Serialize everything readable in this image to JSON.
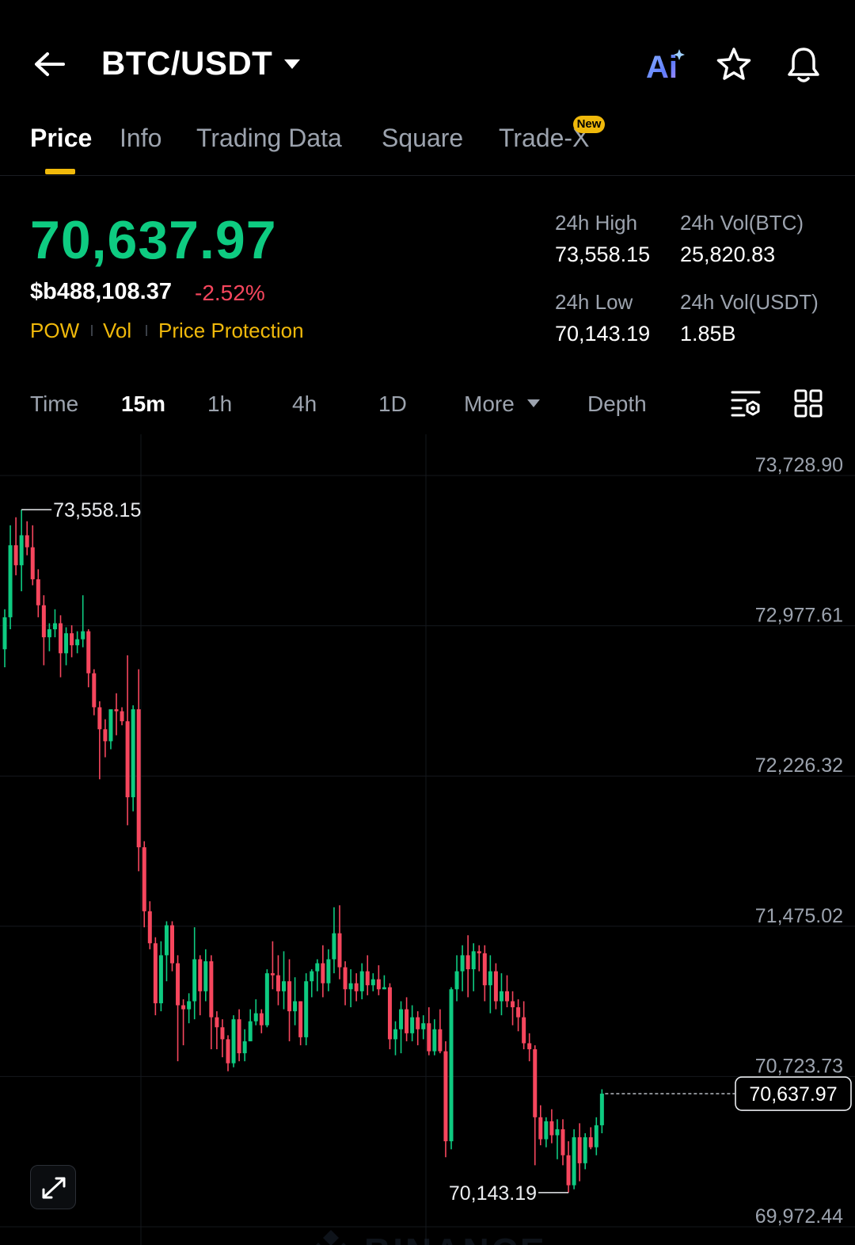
{
  "header": {
    "pair": "BTC/USDT",
    "ai_label": "Ai"
  },
  "tabs": [
    {
      "label": "Price",
      "active": true
    },
    {
      "label": "Info"
    },
    {
      "label": "Trading Data"
    },
    {
      "label": "Square"
    },
    {
      "label": "Trade-X",
      "badge": "New"
    }
  ],
  "price": {
    "last": "70,637.97",
    "fiat": "$b488,108.37",
    "change": "-2.52%",
    "tags": [
      "POW",
      "Vol",
      "Price Protection"
    ]
  },
  "stats": {
    "high_label": "24h High",
    "high_value": "73,558.15",
    "vol_btc_label": "24h Vol(BTC)",
    "vol_btc_value": "25,820.83",
    "low_label": "24h Low",
    "low_value": "70,143.19",
    "vol_usdt_label": "24h Vol(USDT)",
    "vol_usdt_value": "1.85B"
  },
  "intervals": {
    "items": [
      "Time",
      "15m",
      "1h",
      "4h",
      "1D",
      "More",
      "Depth"
    ],
    "active": "15m"
  },
  "colors": {
    "up": "#0ecb81",
    "down": "#f6465d",
    "accent": "#f0b90b",
    "background": "#000000"
  },
  "chart_data": {
    "type": "candlestick",
    "interval": "15m",
    "watermark": "BINANCE",
    "y_ticks": [
      "73,728.90",
      "72,977.61",
      "72,226.32",
      "71,475.02",
      "70,723.73",
      "69,972.44"
    ],
    "ylim": [
      69972.44,
      73728.9
    ],
    "high_marker": "73,558.15",
    "low_marker": "70,143.19",
    "last_price_label": "70,637.97",
    "last_price": 70637.97,
    "candles": [
      {
        "o": 72860,
        "h": 73060,
        "l": 72770,
        "c": 73020
      },
      {
        "o": 73020,
        "h": 73480,
        "l": 72960,
        "c": 73380
      },
      {
        "o": 73380,
        "h": 73520,
        "l": 73230,
        "c": 73280
      },
      {
        "o": 73280,
        "h": 73558.15,
        "l": 73150,
        "c": 73430
      },
      {
        "o": 73430,
        "h": 73500,
        "l": 73330,
        "c": 73370
      },
      {
        "o": 73370,
        "h": 73480,
        "l": 73180,
        "c": 73210
      },
      {
        "o": 73210,
        "h": 73260,
        "l": 73020,
        "c": 73080
      },
      {
        "o": 73080,
        "h": 73130,
        "l": 72780,
        "c": 72920
      },
      {
        "o": 72920,
        "h": 72990,
        "l": 72850,
        "c": 72960
      },
      {
        "o": 72960,
        "h": 73060,
        "l": 72920,
        "c": 72990
      },
      {
        "o": 72990,
        "h": 73030,
        "l": 72720,
        "c": 72840
      },
      {
        "o": 72840,
        "h": 72970,
        "l": 72780,
        "c": 72940
      },
      {
        "o": 72940,
        "h": 72980,
        "l": 72820,
        "c": 72880
      },
      {
        "o": 72880,
        "h": 72950,
        "l": 72840,
        "c": 72910
      },
      {
        "o": 72910,
        "h": 73130,
        "l": 72870,
        "c": 72950
      },
      {
        "o": 72950,
        "h": 72960,
        "l": 72670,
        "c": 72740
      },
      {
        "o": 72740,
        "h": 72760,
        "l": 72530,
        "c": 72570
      },
      {
        "o": 72570,
        "h": 72600,
        "l": 72210,
        "c": 72460
      },
      {
        "o": 72460,
        "h": 72510,
        "l": 72320,
        "c": 72400
      },
      {
        "o": 72400,
        "h": 72530,
        "l": 72360,
        "c": 72560
      },
      {
        "o": 72560,
        "h": 72640,
        "l": 72430,
        "c": 72550
      },
      {
        "o": 72550,
        "h": 72570,
        "l": 72480,
        "c": 72500
      },
      {
        "o": 72500,
        "h": 72830,
        "l": 71980,
        "c": 72120
      },
      {
        "o": 72120,
        "h": 72580,
        "l": 72050,
        "c": 72560
      },
      {
        "o": 72560,
        "h": 72760,
        "l": 71750,
        "c": 71870
      },
      {
        "o": 71870,
        "h": 71900,
        "l": 71470,
        "c": 71550
      },
      {
        "o": 71550,
        "h": 71600,
        "l": 71360,
        "c": 71390
      },
      {
        "o": 71390,
        "h": 71420,
        "l": 71030,
        "c": 71090
      },
      {
        "o": 71090,
        "h": 71400,
        "l": 71050,
        "c": 71330
      },
      {
        "o": 71330,
        "h": 71500,
        "l": 71200,
        "c": 71480
      },
      {
        "o": 71480,
        "h": 71500,
        "l": 71250,
        "c": 71290
      },
      {
        "o": 71290,
        "h": 71330,
        "l": 70800,
        "c": 71080
      },
      {
        "o": 71080,
        "h": 71110,
        "l": 70880,
        "c": 71060
      },
      {
        "o": 71060,
        "h": 71140,
        "l": 70990,
        "c": 71100
      },
      {
        "o": 71100,
        "h": 71470,
        "l": 71010,
        "c": 71310
      },
      {
        "o": 71310,
        "h": 71330,
        "l": 71030,
        "c": 71150
      },
      {
        "o": 71150,
        "h": 71360,
        "l": 71100,
        "c": 71300
      },
      {
        "o": 71300,
        "h": 71330,
        "l": 70860,
        "c": 71020
      },
      {
        "o": 71020,
        "h": 71050,
        "l": 70860,
        "c": 70970
      },
      {
        "o": 70970,
        "h": 71010,
        "l": 70820,
        "c": 70910
      },
      {
        "o": 70910,
        "h": 70930,
        "l": 70750,
        "c": 70790
      },
      {
        "o": 70790,
        "h": 71030,
        "l": 70770,
        "c": 71010
      },
      {
        "o": 71010,
        "h": 71060,
        "l": 70800,
        "c": 70840
      },
      {
        "o": 70840,
        "h": 70960,
        "l": 70800,
        "c": 70900
      },
      {
        "o": 70900,
        "h": 71060,
        "l": 70900,
        "c": 71000
      },
      {
        "o": 71000,
        "h": 71110,
        "l": 70980,
        "c": 71040
      },
      {
        "o": 71040,
        "h": 71060,
        "l": 70940,
        "c": 70980
      },
      {
        "o": 70980,
        "h": 71260,
        "l": 70970,
        "c": 71240
      },
      {
        "o": 71240,
        "h": 71400,
        "l": 71160,
        "c": 71230
      },
      {
        "o": 71230,
        "h": 71330,
        "l": 71080,
        "c": 71150
      },
      {
        "o": 71150,
        "h": 71350,
        "l": 71060,
        "c": 71200
      },
      {
        "o": 71200,
        "h": 71310,
        "l": 70900,
        "c": 71050
      },
      {
        "o": 71050,
        "h": 71220,
        "l": 70980,
        "c": 71100
      },
      {
        "o": 71100,
        "h": 71100,
        "l": 70880,
        "c": 70920
      },
      {
        "o": 70920,
        "h": 71240,
        "l": 70880,
        "c": 71200
      },
      {
        "o": 71200,
        "h": 71260,
        "l": 71120,
        "c": 71250
      },
      {
        "o": 71250,
        "h": 71310,
        "l": 71150,
        "c": 71290
      },
      {
        "o": 71290,
        "h": 71380,
        "l": 71120,
        "c": 71190
      },
      {
        "o": 71190,
        "h": 71360,
        "l": 71150,
        "c": 71310
      },
      {
        "o": 71310,
        "h": 71570,
        "l": 71240,
        "c": 71440
      },
      {
        "o": 71440,
        "h": 71580,
        "l": 71210,
        "c": 71270
      },
      {
        "o": 71270,
        "h": 71300,
        "l": 71080,
        "c": 71160
      },
      {
        "o": 71160,
        "h": 71260,
        "l": 71070,
        "c": 71190
      },
      {
        "o": 71190,
        "h": 71240,
        "l": 71100,
        "c": 71150
      },
      {
        "o": 71150,
        "h": 71290,
        "l": 71110,
        "c": 71250
      },
      {
        "o": 71250,
        "h": 71330,
        "l": 71130,
        "c": 71180
      },
      {
        "o": 71180,
        "h": 71240,
        "l": 71150,
        "c": 71210
      },
      {
        "o": 71210,
        "h": 71280,
        "l": 71130,
        "c": 71160
      },
      {
        "o": 71160,
        "h": 71230,
        "l": 71160,
        "c": 71170
      },
      {
        "o": 71170,
        "h": 71190,
        "l": 70860,
        "c": 70910
      },
      {
        "o": 70910,
        "h": 71000,
        "l": 70830,
        "c": 70960
      },
      {
        "o": 70960,
        "h": 71100,
        "l": 70840,
        "c": 71060
      },
      {
        "o": 71060,
        "h": 71120,
        "l": 70900,
        "c": 70940
      },
      {
        "o": 70940,
        "h": 71080,
        "l": 70900,
        "c": 71020
      },
      {
        "o": 71020,
        "h": 71050,
        "l": 70880,
        "c": 70960
      },
      {
        "o": 70960,
        "h": 71030,
        "l": 70910,
        "c": 70990
      },
      {
        "o": 70990,
        "h": 71070,
        "l": 70830,
        "c": 70850
      },
      {
        "o": 70850,
        "h": 71010,
        "l": 70830,
        "c": 70960
      },
      {
        "o": 70960,
        "h": 71060,
        "l": 70840,
        "c": 70850
      },
      {
        "o": 70850,
        "h": 70900,
        "l": 70320,
        "c": 70400
      },
      {
        "o": 70400,
        "h": 71170,
        "l": 70360,
        "c": 71160
      },
      {
        "o": 71160,
        "h": 71330,
        "l": 71100,
        "c": 71250
      },
      {
        "o": 71250,
        "h": 71380,
        "l": 71150,
        "c": 71330
      },
      {
        "o": 71330,
        "h": 71430,
        "l": 71120,
        "c": 71260
      },
      {
        "o": 71260,
        "h": 71390,
        "l": 71150,
        "c": 71350
      },
      {
        "o": 71350,
        "h": 71380,
        "l": 71250,
        "c": 71340
      },
      {
        "o": 71340,
        "h": 71380,
        "l": 71100,
        "c": 71180
      },
      {
        "o": 71180,
        "h": 71330,
        "l": 71040,
        "c": 71250
      },
      {
        "o": 71250,
        "h": 71290,
        "l": 71060,
        "c": 71100
      },
      {
        "o": 71100,
        "h": 71240,
        "l": 71030,
        "c": 71150
      },
      {
        "o": 71150,
        "h": 71230,
        "l": 71070,
        "c": 71100
      },
      {
        "o": 71100,
        "h": 71150,
        "l": 70980,
        "c": 71070
      },
      {
        "o": 71070,
        "h": 71110,
        "l": 70950,
        "c": 71020
      },
      {
        "o": 71020,
        "h": 71100,
        "l": 70860,
        "c": 70890
      },
      {
        "o": 70890,
        "h": 70940,
        "l": 70800,
        "c": 70860
      },
      {
        "o": 70860,
        "h": 70880,
        "l": 70280,
        "c": 70520
      },
      {
        "o": 70520,
        "h": 70580,
        "l": 70380,
        "c": 70410
      },
      {
        "o": 70410,
        "h": 70520,
        "l": 70370,
        "c": 70500
      },
      {
        "o": 70500,
        "h": 70560,
        "l": 70390,
        "c": 70430
      },
      {
        "o": 70430,
        "h": 70510,
        "l": 70310,
        "c": 70460
      },
      {
        "o": 70460,
        "h": 70510,
        "l": 70280,
        "c": 70330
      },
      {
        "o": 70330,
        "h": 70400,
        "l": 70143.19,
        "c": 70180
      },
      {
        "o": 70180,
        "h": 70460,
        "l": 70160,
        "c": 70420
      },
      {
        "o": 70420,
        "h": 70490,
        "l": 70200,
        "c": 70290
      },
      {
        "o": 70290,
        "h": 70440,
        "l": 70260,
        "c": 70420
      },
      {
        "o": 70420,
        "h": 70470,
        "l": 70360,
        "c": 70370
      },
      {
        "o": 70370,
        "h": 70520,
        "l": 70330,
        "c": 70480
      },
      {
        "o": 70480,
        "h": 70660,
        "l": 70440,
        "c": 70637.97
      }
    ]
  }
}
